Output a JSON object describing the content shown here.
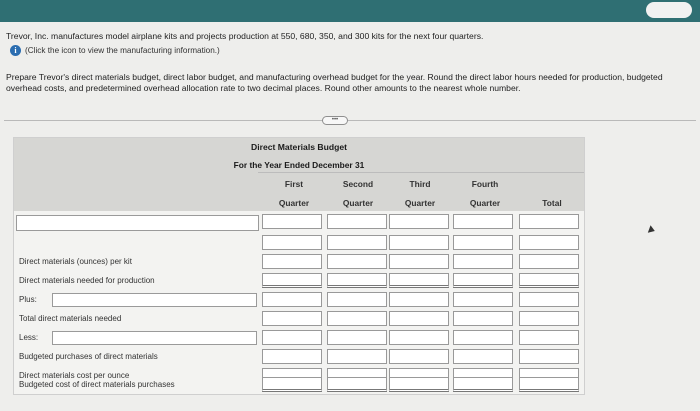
{
  "problem_text": "Trevor, Inc. manufactures model airplane kits and projects production at 550, 680, 350, and 300 kits for the next four quarters.",
  "info_link": "(Click the icon to view the manufacturing information.)",
  "instructions": "Prepare Trevor's direct materials budget, direct labor budget, and manufacturing overhead budget for the year. Round the direct labor hours needed for production, budgeted overhead costs, and predetermined overhead allocation rate to two decimal places. Round other amounts to the nearest whole number.",
  "budget": {
    "title": "Direct Materials Budget",
    "subtitle": "For the Year Ended December 31",
    "columns": [
      {
        "top": "First",
        "bottom": "Quarter"
      },
      {
        "top": "Second",
        "bottom": "Quarter"
      },
      {
        "top": "Third",
        "bottom": "Quarter"
      },
      {
        "top": "Fourth",
        "bottom": "Quarter"
      },
      {
        "top": "",
        "bottom": "Total"
      }
    ],
    "rows": [
      {
        "label": "Direct materials (ounces) per kit"
      },
      {
        "label": "Direct materials needed for production"
      },
      {
        "label": "Plus:"
      },
      {
        "label": "Total direct materials needed"
      },
      {
        "label": "Less:"
      },
      {
        "label": "Budgeted purchases of direct materials"
      },
      {
        "label": "Direct materials cost per ounce"
      },
      {
        "label": "Budgeted cost of direct materials purchases"
      }
    ]
  }
}
